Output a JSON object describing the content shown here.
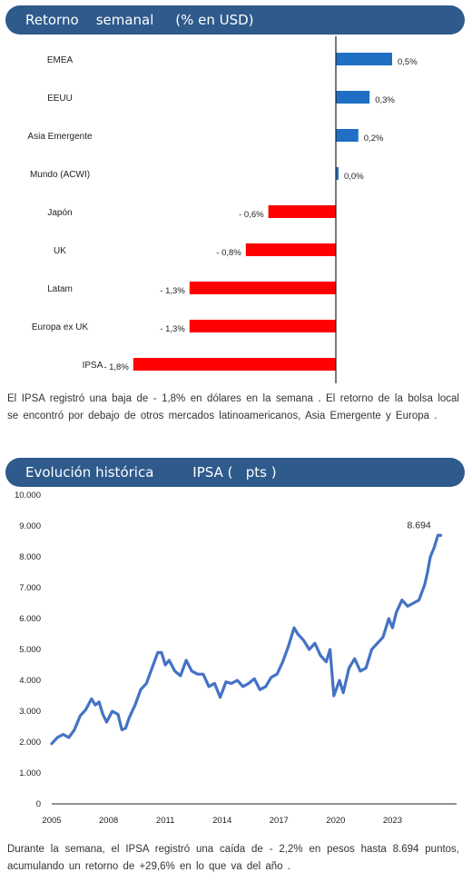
{
  "banner_weekly": "Retorno    semanal     (% en USD)",
  "banner_history": "Evolución histórica         IPSA (   pts )",
  "paragraph_weekly": "El IPSA registró una baja de - 1,8% en dólares en la semana . El retorno de la bolsa local se encontró por debajo de otros mercados latinoamericanos, Asia Emergente y Europa .",
  "paragraph_history": "Durante la semana, el IPSA registró una caída de - 2,2% en pesos hasta 8.694 puntos, acumulando un retorno de +29,6% en lo que va del año .",
  "colors": {
    "banner": "#2e5a8c",
    "positive": "#1f6fc5",
    "negative": "#ff0000",
    "line": "#4472c4"
  },
  "chart_data": [
    {
      "type": "bar",
      "orientation": "horizontal",
      "categories": [
        "EMEA",
        "EEUU",
        "Asia Emergente",
        "Mundo (ACWI)",
        "Japón",
        "UK",
        "Latam",
        "Europa ex UK",
        "IPSA"
      ],
      "values": [
        0.5,
        0.3,
        0.2,
        0.0,
        -0.6,
        -0.8,
        -1.3,
        -1.3,
        -1.8
      ],
      "data_labels": [
        "0,5%",
        "0,3%",
        "0,2%",
        "0,0%",
        "- 0,6%",
        "- 0,8%",
        "- 1,3%",
        "- 1,3%",
        "- 1,8%"
      ]
    },
    {
      "type": "line",
      "x_ticks": [
        "2005",
        "2008",
        "2011",
        "2014",
        "2017",
        "2020",
        "2023"
      ],
      "y_ticks": [
        "0",
        "1.000",
        "2.000",
        "3.000",
        "4.000",
        "5.000",
        "6.000",
        "7.000",
        "8.000",
        "9.000",
        "10.000"
      ],
      "xlim": [
        2005,
        2026
      ],
      "ylim": [
        0,
        10000
      ],
      "annotation": "8.694",
      "x": [
        2005.0,
        2005.3,
        2005.6,
        2005.9,
        2006.2,
        2006.5,
        2006.8,
        2007.1,
        2007.3,
        2007.5,
        2007.7,
        2007.9,
        2008.2,
        2008.5,
        2008.7,
        2008.9,
        2009.1,
        2009.4,
        2009.7,
        2010.0,
        2010.3,
        2010.6,
        2010.8,
        2011.0,
        2011.2,
        2011.5,
        2011.8,
        2012.1,
        2012.4,
        2012.7,
        2013.0,
        2013.3,
        2013.6,
        2013.9,
        2014.2,
        2014.5,
        2014.8,
        2015.1,
        2015.4,
        2015.7,
        2016.0,
        2016.3,
        2016.6,
        2016.9,
        2017.2,
        2017.5,
        2017.8,
        2018.0,
        2018.3,
        2018.6,
        2018.9,
        2019.2,
        2019.5,
        2019.7,
        2019.9,
        2020.2,
        2020.4,
        2020.7,
        2021.0,
        2021.3,
        2021.6,
        2021.9,
        2022.2,
        2022.5,
        2022.8,
        2023.0,
        2023.2,
        2023.5,
        2023.8,
        2024.1,
        2024.4,
        2024.7,
        2024.85,
        2025.0,
        2025.2,
        2025.4,
        2025.55
      ],
      "y": [
        1950,
        2150,
        2250,
        2150,
        2400,
        2850,
        3050,
        3400,
        3200,
        3300,
        2900,
        2650,
        3000,
        2900,
        2400,
        2450,
        2800,
        3200,
        3700,
        3900,
        4400,
        4900,
        4900,
        4500,
        4650,
        4300,
        4150,
        4650,
        4300,
        4200,
        4200,
        3800,
        3900,
        3450,
        3950,
        3900,
        4000,
        3800,
        3900,
        4050,
        3700,
        3800,
        4100,
        4200,
        4600,
        5100,
        5700,
        5500,
        5300,
        5000,
        5200,
        4800,
        4600,
        5000,
        3500,
        4000,
        3600,
        4400,
        4700,
        4300,
        4400,
        5000,
        5200,
        5400,
        6000,
        5700,
        6200,
        6600,
        6400,
        6500,
        6600,
        7100,
        7500,
        8000,
        8300,
        8700,
        8694
      ]
    }
  ]
}
